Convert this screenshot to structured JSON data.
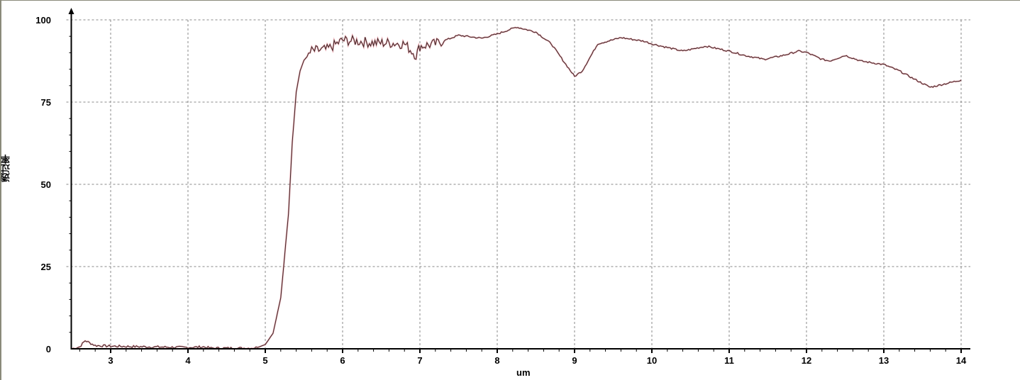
{
  "chart_data": {
    "type": "line",
    "title": "",
    "xlabel": "um",
    "ylabel": "透过率",
    "xlim": [
      2.5,
      14
    ],
    "ylim": [
      0,
      100
    ],
    "xticks": [
      "3",
      "4",
      "5",
      "6",
      "7",
      "8",
      "9",
      "10",
      "11",
      "12",
      "13",
      "14"
    ],
    "yticks": [
      "0",
      "25",
      "50",
      "75",
      "100"
    ],
    "grid": true,
    "line_color": "#3a2a2a",
    "fill_color": "#e06070",
    "x": [
      2.5,
      2.6,
      2.67,
      2.8,
      3.0,
      3.5,
      4.0,
      4.2,
      4.3,
      4.5,
      4.8,
      4.9,
      5.0,
      5.1,
      5.2,
      5.3,
      5.35,
      5.4,
      5.45,
      5.5,
      5.6,
      5.8,
      6.0,
      6.2,
      6.4,
      6.6,
      6.8,
      6.95,
      7.0,
      7.2,
      7.5,
      7.8,
      8.0,
      8.25,
      8.5,
      8.7,
      8.85,
      9.0,
      9.1,
      9.3,
      9.6,
      9.9,
      10.0,
      10.4,
      10.7,
      11.0,
      11.2,
      11.45,
      11.7,
      11.9,
      12.0,
      12.2,
      12.3,
      12.5,
      12.7,
      13.0,
      13.2,
      13.4,
      13.6,
      13.8,
      14.0
    ],
    "y": [
      0,
      0.6,
      2.5,
      1.0,
      0.8,
      0.6,
      0.4,
      0.6,
      0.2,
      0.2,
      0.2,
      0.4,
      1.3,
      4.7,
      15.5,
      41,
      63,
      78,
      84.5,
      87.7,
      90.5,
      91,
      93.8,
      93.5,
      93,
      93,
      92.7,
      89.2,
      92,
      92.7,
      95.3,
      94.4,
      95.7,
      97.8,
      96.3,
      92.7,
      87.7,
      82.8,
      84.5,
      92.7,
      94.6,
      93.5,
      92.7,
      90.5,
      92,
      90.5,
      89.2,
      88,
      89.2,
      90.5,
      90.1,
      88,
      87.5,
      89.2,
      87.5,
      86.4,
      84.5,
      81.9,
      79.5,
      80.6,
      81.7
    ]
  }
}
